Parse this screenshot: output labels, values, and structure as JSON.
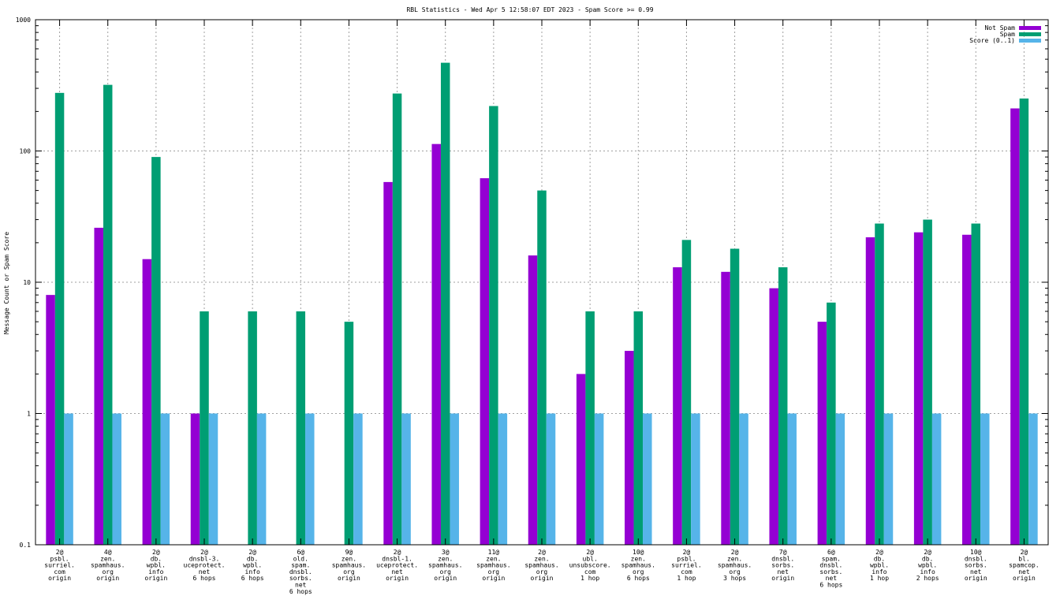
{
  "chart_data": {
    "type": "bar",
    "title": "RBL Statistics - Wed Apr  5 12:58:07 EDT 2023 - Spam Score >= 0.99",
    "ylabel": "Message Count or Spam Score",
    "xlabel": "",
    "yscale": "log",
    "ylim": [
      0.1,
      1000
    ],
    "yticks": [
      {
        "value": 0.1,
        "label": "0.1"
      },
      {
        "value": 1,
        "label": "1"
      },
      {
        "value": 10,
        "label": "10"
      },
      {
        "value": 100,
        "label": "100"
      },
      {
        "value": 1000,
        "label": "1000"
      }
    ],
    "grid": true,
    "legend_position": "top-right",
    "categories": [
      [
        "2@",
        "psbl.",
        "surriel.",
        "com",
        "origin"
      ],
      [
        "4@",
        "zen.",
        "spamhaus.",
        "org",
        "origin"
      ],
      [
        "2@",
        "db.",
        "wpbl.",
        "info",
        "origin"
      ],
      [
        "2@",
        "dnsbl-3.",
        "uceprotect.",
        "net",
        "6 hops"
      ],
      [
        "2@",
        "db.",
        "wpbl.",
        "info",
        "6 hops"
      ],
      [
        "6@",
        "old.",
        "spam.",
        "dnsbl.",
        "sorbs.",
        "net",
        "6 hops"
      ],
      [
        "9@",
        "zen.",
        "spamhaus.",
        "org",
        "origin"
      ],
      [
        "2@",
        "dnsbl-1.",
        "uceprotect.",
        "net",
        "origin"
      ],
      [
        "3@",
        "zen.",
        "spamhaus.",
        "org",
        "origin"
      ],
      [
        "11@",
        "zen.",
        "spamhaus.",
        "org",
        "origin"
      ],
      [
        "2@",
        "zen.",
        "spamhaus.",
        "org",
        "origin"
      ],
      [
        "2@",
        "ubl.",
        "unsubscore.",
        "com",
        "1 hop"
      ],
      [
        "10@",
        "zen.",
        "spamhaus.",
        "org",
        "6 hops"
      ],
      [
        "2@",
        "psbl.",
        "surriel.",
        "com",
        "1 hop"
      ],
      [
        "2@",
        "zen.",
        "spamhaus.",
        "org",
        "3 hops"
      ],
      [
        "7@",
        "dnsbl.",
        "sorbs.",
        "net",
        "origin"
      ],
      [
        "6@",
        "spam.",
        "dnsbl.",
        "sorbs.",
        "net",
        "6 hops"
      ],
      [
        "2@",
        "db.",
        "wpbl.",
        "info",
        "1 hop"
      ],
      [
        "2@",
        "db.",
        "wpbl.",
        "info",
        "2 hops"
      ],
      [
        "10@",
        "dnsbl.",
        "sorbs.",
        "net",
        "origin"
      ],
      [
        "2@",
        "bl.",
        "spamcop.",
        "net",
        "origin"
      ]
    ],
    "series": [
      {
        "name": "Not Spam",
        "color": "#9400d3",
        "values": [
          8,
          26,
          15,
          1,
          null,
          null,
          null,
          58,
          113,
          62,
          16,
          2,
          3,
          13,
          12,
          9,
          5,
          22,
          24,
          23,
          211
        ]
      },
      {
        "name": "Spam",
        "color": "#009e73",
        "values": [
          277,
          319,
          90,
          6,
          6,
          6,
          5,
          274,
          470,
          220,
          50,
          6,
          6,
          21,
          18,
          13,
          7,
          28,
          30,
          28,
          251
        ]
      },
      {
        "name": "Score (0..1)",
        "color": "#56b4e9",
        "values": [
          1,
          1,
          1,
          1,
          1,
          1,
          1,
          1,
          1,
          1,
          1,
          1,
          1,
          1,
          1,
          1,
          1,
          1,
          1,
          1,
          1
        ]
      }
    ]
  }
}
